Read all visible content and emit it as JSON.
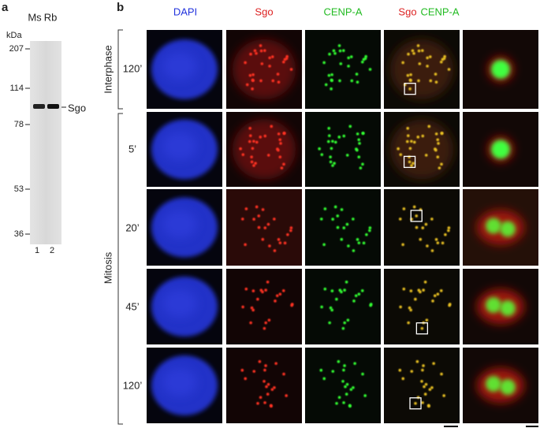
{
  "panel_a": {
    "label": "a",
    "unit": "kDa",
    "lanes_top": [
      "Ms",
      "Rb"
    ],
    "markers": [
      "207",
      "114",
      "78",
      "53",
      "36"
    ],
    "band_label": "Sgo",
    "lanes_bottom": [
      "1",
      "2"
    ]
  },
  "panel_b": {
    "label": "b",
    "columns": [
      "DAPI",
      "Sgo",
      "CENP-A"
    ],
    "merge_header": [
      "Sgo",
      "CENP-A"
    ],
    "groups": [
      "Interphase",
      "Mitosis"
    ],
    "rows": [
      "120’",
      "5’",
      "20’",
      "45’",
      "120’"
    ]
  }
}
